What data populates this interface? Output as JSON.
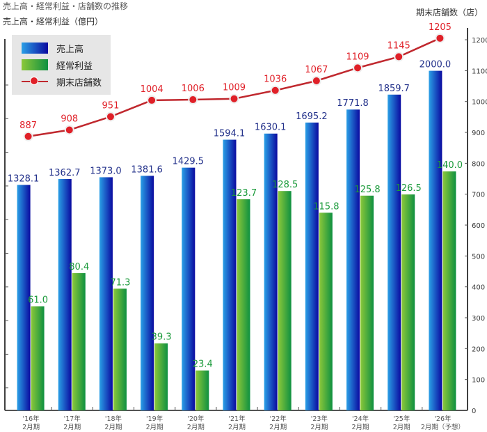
{
  "chart_data": {
    "type": "bar",
    "title": "売上高・経常利益・店舗数の推移",
    "ylabel_left": "売上高・経常利益（億円）",
    "ylabel_right": "期末店舗数（店）",
    "categories": [
      [
        "'16年",
        "2月期"
      ],
      [
        "'17年",
        "2月期"
      ],
      [
        "'18年",
        "2月期"
      ],
      [
        "'19年",
        "2月期"
      ],
      [
        "'20年",
        "2月期"
      ],
      [
        "'21年",
        "2月期"
      ],
      [
        "'22年",
        "2月期"
      ],
      [
        "'23年",
        "2月期"
      ],
      [
        "'24年",
        "2月期"
      ],
      [
        "'25年",
        "2月期"
      ],
      [
        "'26年",
        "2月期（予想）"
      ]
    ],
    "series": [
      {
        "name": "売上高",
        "type": "bar",
        "values": [
          1328.1,
          1362.7,
          1373.0,
          1381.6,
          1429.5,
          1594.1,
          1630.1,
          1695.2,
          1771.8,
          1859.7,
          2000.0
        ],
        "labels": [
          "1328.1",
          "1362.7",
          "1373.0",
          "1381.6",
          "1429.5",
          "1594.1",
          "1630.1",
          "1695.2",
          "1771.8",
          "1859.7",
          "2000.0"
        ],
        "color": "#1020b0"
      },
      {
        "name": "経常利益",
        "type": "bar",
        "values": [
          61.0,
          80.4,
          71.3,
          39.3,
          23.4,
          123.7,
          128.5,
          115.8,
          125.8,
          126.5,
          140.0
        ],
        "labels": [
          "61.0",
          "80.4",
          "71.3",
          "39.3",
          "23.4",
          "123.7",
          "128.5",
          "115.8",
          "125.8",
          "126.5",
          "140.0"
        ],
        "color": "#1a9a3a"
      },
      {
        "name": "期末店舗数",
        "type": "line",
        "axis": "right",
        "values": [
          887,
          908,
          951,
          1004,
          1006,
          1009,
          1036,
          1067,
          1109,
          1145,
          1205
        ],
        "color": "#d0202a"
      }
    ],
    "right_axis": {
      "ylim": [
        0,
        1200
      ],
      "ticks": [
        "0",
        "100",
        "200",
        "300",
        "400",
        "500",
        "600",
        "700",
        "800",
        "900",
        "1000",
        "1100",
        "1200"
      ]
    },
    "legend": "top-left"
  }
}
